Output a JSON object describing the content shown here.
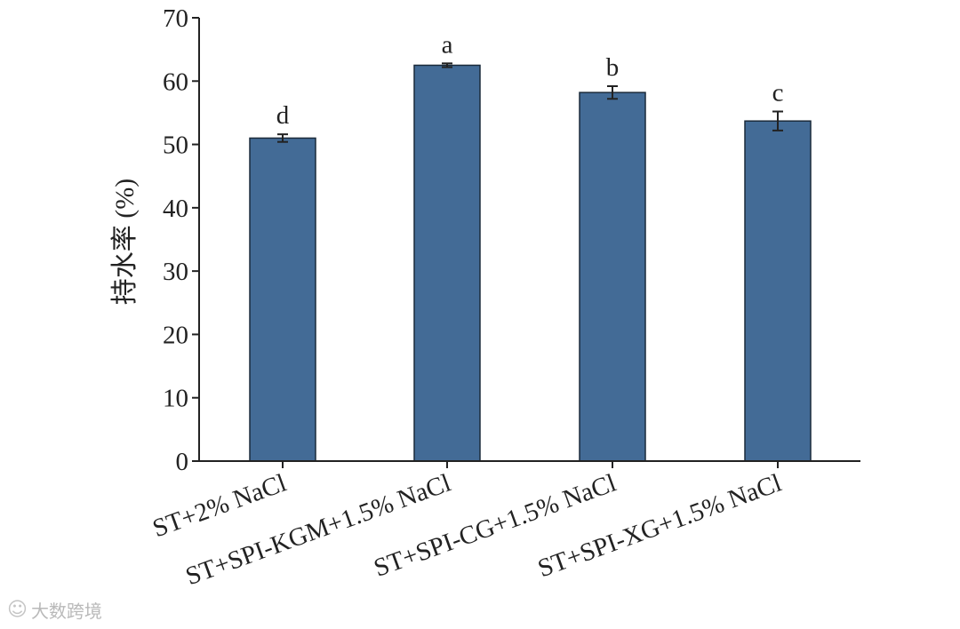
{
  "chart_data": {
    "type": "bar",
    "title": "",
    "xlabel": "",
    "ylabel": "持水率 (%)",
    "ylim": [
      0,
      70
    ],
    "yticks": [
      0,
      10,
      20,
      30,
      40,
      50,
      60,
      70
    ],
    "grid": false,
    "categories": [
      "ST+2% NaCl",
      "ST+SPI-KGM+1.5% NaCl",
      "ST+SPI-CG+1.5% NaCl",
      "ST+SPI-XG+1.5% NaCl"
    ],
    "values": [
      51.0,
      62.5,
      58.2,
      53.7
    ],
    "errors": [
      0.6,
      0.3,
      1.0,
      1.5
    ],
    "significance": [
      "d",
      "a",
      "b",
      "c"
    ],
    "bar_color": "#436b96",
    "bar_edge_color": "#1a2a3a"
  },
  "watermark": {
    "text": "大数跨境"
  }
}
